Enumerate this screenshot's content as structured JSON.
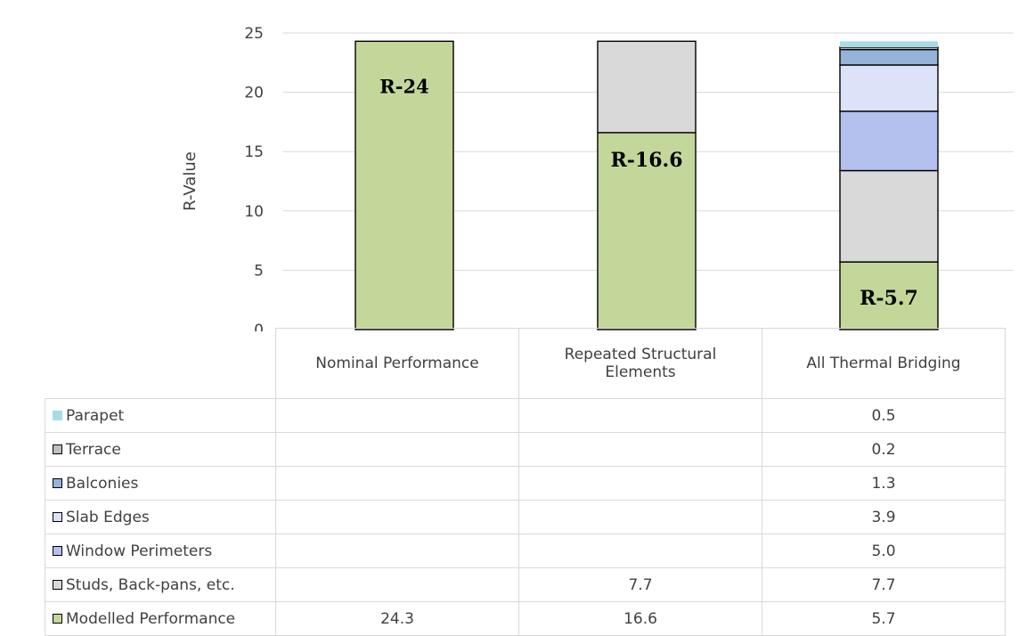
{
  "chart_data": {
    "type": "bar",
    "stacked": true,
    "categories": [
      "Nominal Performance",
      "Repeated Structural Elements",
      "All Thermal Bridging"
    ],
    "category_lines": [
      [
        "Nominal Performance"
      ],
      [
        "Repeated Structural",
        "Elements"
      ],
      [
        "All Thermal Bridging"
      ]
    ],
    "ylabel": "R-Value",
    "ylim": [
      0,
      25
    ],
    "yticks": [
      0,
      5,
      10,
      15,
      20,
      25
    ],
    "grid": true,
    "legend_position": "data-table-left",
    "series": [
      {
        "name": "Modelled Performance",
        "color": "#c4d79b",
        "border": true,
        "values": [
          24.3,
          16.6,
          5.7
        ],
        "labels": [
          "24.3",
          "16.6",
          "5.7"
        ]
      },
      {
        "name": "Studs, Back-pans, etc.",
        "color": "#d9d9d9",
        "border": true,
        "values": [
          0,
          7.7,
          7.7
        ],
        "labels": [
          "",
          "7.7",
          "7.7"
        ]
      },
      {
        "name": "Window Perimeters",
        "color": "#b4c0ee",
        "border": true,
        "values": [
          0,
          0,
          5.0
        ],
        "labels": [
          "",
          "",
          "5.0"
        ]
      },
      {
        "name": "Slab Edges",
        "color": "#dce2f8",
        "border": true,
        "values": [
          0,
          0,
          3.9
        ],
        "labels": [
          "",
          "",
          "3.9"
        ]
      },
      {
        "name": "Balconies",
        "color": "#95b3d7",
        "border": true,
        "values": [
          0,
          0,
          1.3
        ],
        "labels": [
          "",
          "",
          "1.3"
        ]
      },
      {
        "name": "Terrace",
        "color": "#bfbfbf",
        "border": true,
        "values": [
          0,
          0,
          0.2
        ],
        "labels": [
          "",
          "",
          "0.2"
        ]
      },
      {
        "name": "Parapet",
        "color": "#a9dbe6",
        "border": false,
        "values": [
          0,
          0,
          0.5
        ],
        "labels": [
          "",
          "",
          "0.5"
        ]
      }
    ],
    "annotations": [
      {
        "text": "R-24",
        "category": 0
      },
      {
        "text": "R-16.6",
        "category": 1
      },
      {
        "text": "R-5.7",
        "category": 2
      }
    ]
  }
}
